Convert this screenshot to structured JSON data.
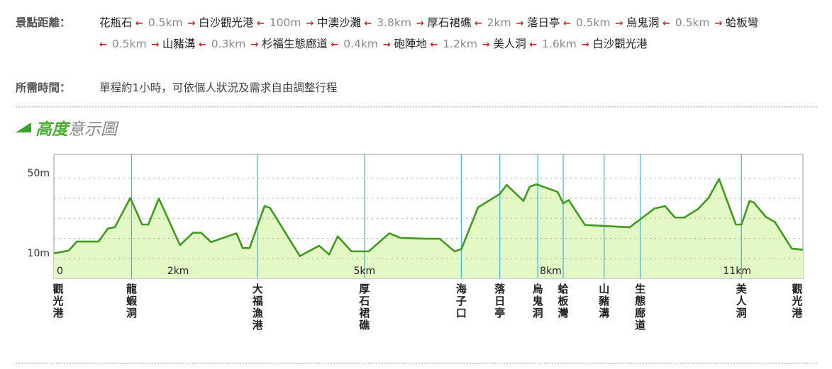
{
  "distances": {
    "label": "景點距離：",
    "route": [
      {
        "stop": "花瓶石"
      },
      {
        "dist": "0.5km"
      },
      {
        "stop": "白沙觀光港"
      },
      {
        "dist": "100m"
      },
      {
        "stop": "中澳沙灘"
      },
      {
        "dist": "3.8km"
      },
      {
        "stop": "厚石裙礁"
      },
      {
        "dist": "2km"
      },
      {
        "stop": "落日亭"
      },
      {
        "dist": "0.5km"
      },
      {
        "stop": "烏鬼洞"
      },
      {
        "dist": "0.5km"
      },
      {
        "stop": "蛤板彎"
      },
      {
        "dist": "0.5km"
      },
      {
        "stop": "山豬溝"
      },
      {
        "dist": "0.3km"
      },
      {
        "stop": "杉福生態廊道"
      },
      {
        "dist": "0.4km"
      },
      {
        "stop": "砲陣地"
      },
      {
        "dist": "1.2km"
      },
      {
        "stop": "美人洞"
      },
      {
        "dist": "1.6km"
      },
      {
        "stop": "白沙觀光港"
      }
    ],
    "arrow_left": "←",
    "arrow_right": "→"
  },
  "time": {
    "label": "所需時間：",
    "value": "單程約1小時，可依個人狀況及需求自由調整行程"
  },
  "section": {
    "title_green": "高度",
    "title_gray": "意示圖"
  },
  "colors": {
    "line": "#3f9a1e",
    "fill": "#e3f8c4",
    "marker": "#3bb6e6",
    "arrow": "#d41a1a",
    "title": "#49ad2e"
  },
  "chart_data": {
    "type": "area",
    "xlim": [
      0,
      12.06
    ],
    "ylim": [
      0,
      55
    ],
    "grid": true,
    "y_gridlines": [
      10,
      20,
      30,
      40,
      50
    ],
    "y_ticks": [
      {
        "v": 50,
        "label": "50m"
      },
      {
        "v": 10,
        "label": "10m"
      }
    ],
    "x_ticks": [
      {
        "v": 0,
        "label": "0"
      },
      {
        "v": 2,
        "label": "2km"
      },
      {
        "v": 5,
        "label": "5km"
      },
      {
        "v": 8,
        "label": "8km"
      },
      {
        "v": 11,
        "label": "11km"
      }
    ],
    "landmarks": [
      {
        "km": 0,
        "name": "觀光港",
        "line": false
      },
      {
        "km": 1.25,
        "name": "龍蝦洞",
        "line": true
      },
      {
        "km": 3.28,
        "name": "大福漁港",
        "line": true
      },
      {
        "km": 5.0,
        "name": "厚石裙礁",
        "line": true
      },
      {
        "km": 6.56,
        "name": "海子口",
        "line": true
      },
      {
        "km": 7.18,
        "name": "落日亭",
        "line": true
      },
      {
        "km": 7.79,
        "name": "烏鬼洞",
        "line": true
      },
      {
        "km": 8.2,
        "name": "蛤板灣",
        "line": true
      },
      {
        "km": 8.86,
        "name": "山豬溝",
        "line": true
      },
      {
        "km": 9.44,
        "name": "生態廊道",
        "line": true
      },
      {
        "km": 11.07,
        "name": "美人洞",
        "line": true
      },
      {
        "km": 12.06,
        "name": "觀光港",
        "line": false
      }
    ],
    "x": [
      0,
      0.24,
      0.37,
      0.72,
      0.87,
      0.98,
      1.23,
      1.42,
      1.52,
      1.69,
      2.03,
      2.24,
      2.37,
      2.53,
      2.94,
      3.04,
      3.15,
      3.39,
      3.48,
      3.96,
      4.27,
      4.43,
      4.57,
      4.79,
      5.07,
      5.4,
      5.58,
      5.98,
      6.21,
      6.45,
      6.56,
      6.83,
      7.18,
      7.29,
      7.56,
      7.66,
      7.77,
      8.11,
      8.2,
      8.29,
      8.55,
      9.27,
      9.67,
      9.84,
      10.0,
      10.15,
      10.37,
      10.54,
      10.71,
      10.98,
      11.07,
      11.2,
      11.27,
      11.46,
      11.61,
      11.88,
      12.06
    ],
    "y": [
      12.5,
      13.9,
      18.4,
      18.4,
      24.9,
      25.5,
      40.2,
      26.9,
      26.9,
      39.9,
      16.6,
      22.8,
      22.8,
      18.1,
      22.5,
      15.1,
      15.1,
      36.1,
      35.2,
      11.1,
      16.3,
      11.9,
      21.0,
      13.5,
      13.5,
      22.5,
      20.2,
      19.8,
      19.8,
      13.5,
      14.6,
      35.5,
      42.2,
      46.7,
      38.7,
      45.8,
      47.0,
      43.2,
      37.5,
      39.1,
      26.7,
      25.5,
      34.9,
      36.1,
      30.4,
      30.4,
      34.6,
      40.2,
      49.7,
      26.9,
      26.9,
      38.7,
      37.9,
      30.8,
      28.1,
      14.9,
      14.3
    ]
  }
}
